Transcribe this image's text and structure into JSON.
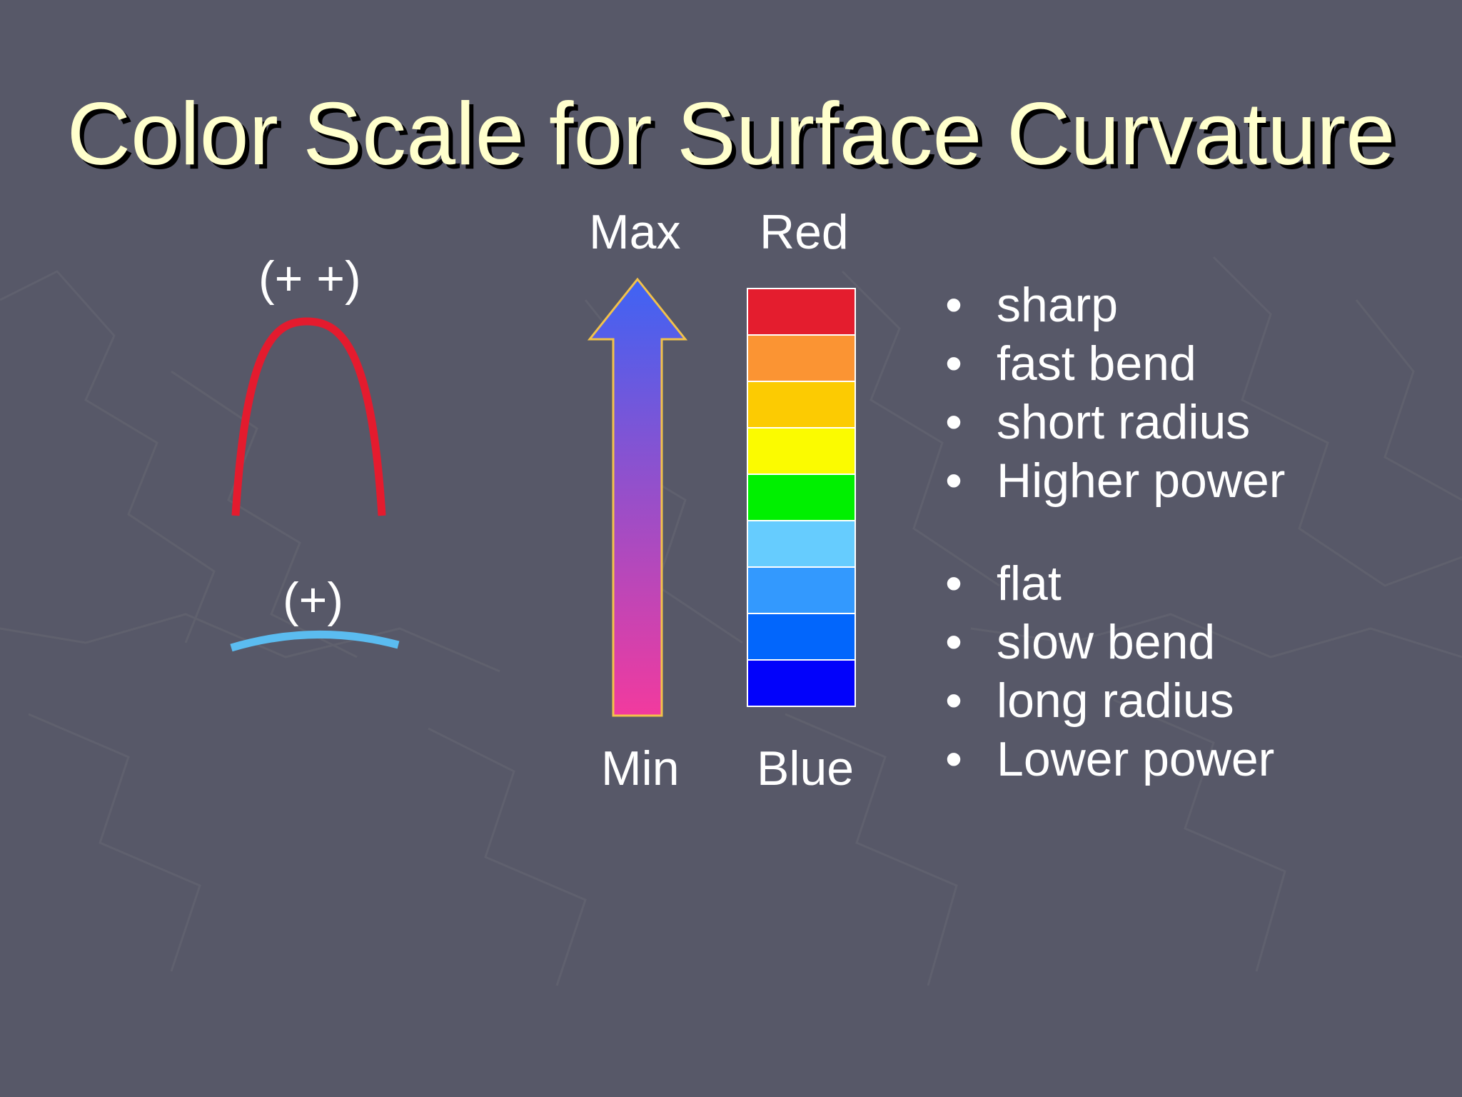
{
  "slide": {
    "title": "Color Scale for Surface Curvature",
    "curves": {
      "steep_label": "(+ +)",
      "flat_label": "(+)",
      "steep_color": "#e41b2e",
      "flat_color": "#5bbcf0"
    },
    "arrow": {
      "top_label": "Max",
      "bottom_label": "Min",
      "top_color": "#3e63f4",
      "bottom_color": "#f23a9e",
      "outline_color": "#f2c24a"
    },
    "scale": {
      "top_label": "Red",
      "bottom_label": "Blue",
      "colors": [
        "#e41d2e",
        "#fb9433",
        "#fccb02",
        "#fbfb00",
        "#00f000",
        "#66ccfe",
        "#3399fe",
        "#0266fc",
        "#0202fb"
      ]
    },
    "bullets_high": [
      {
        "marker": "•",
        "text": "sharp"
      },
      {
        "marker": "•",
        "text": "fast bend"
      },
      {
        "marker": "•",
        "text": "short radius"
      },
      {
        "marker": "•",
        "text": "Higher power"
      }
    ],
    "bullets_low": [
      {
        "marker": "•",
        "text": "flat"
      },
      {
        "marker": "•",
        "text": "slow bend"
      },
      {
        "marker": "•",
        "text": "long radius"
      },
      {
        "marker": "•",
        "text": "Lower power"
      }
    ]
  }
}
